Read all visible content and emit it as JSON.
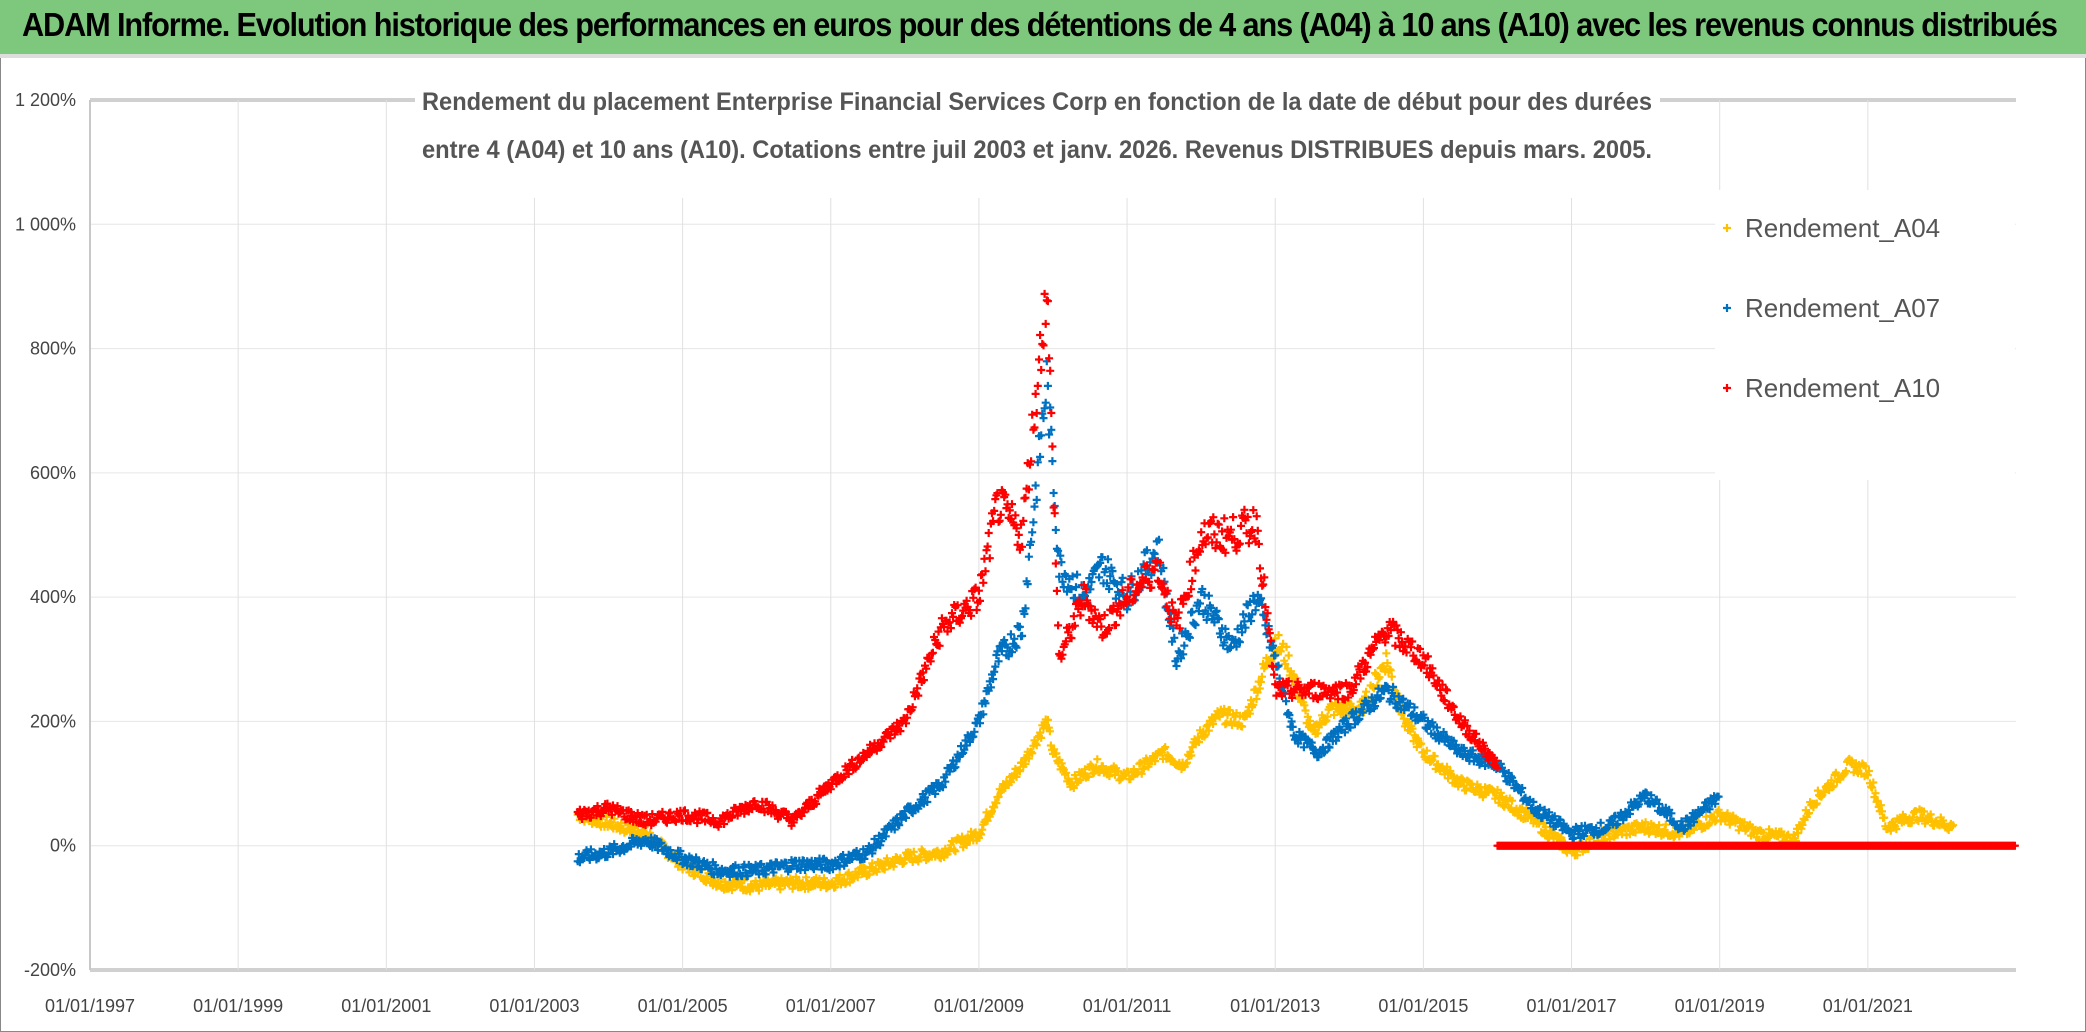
{
  "banner": {
    "title": "ADAM Informe. Evolution historique des performances en euros pour des détentions de 4 ans (A04) à 10 ans (A10) avec les revenus connus distribués"
  },
  "chart_data": {
    "type": "scatter",
    "title_lines": [
      "Rendement du placement Enterprise Financial Services Corp en fonction de la date de début pour des durées",
      "entre 4 (A04) et 10 ans (A10). Cotations entre juil 2003 et janv. 2026. Revenus DISTRIBUES depuis mars. 2005."
    ],
    "xlabel": "",
    "ylabel": "",
    "xlim": [
      "1997-01-01",
      "2023-01-01"
    ],
    "ylim": [
      -200,
      1200
    ],
    "y_ticks": [
      "-200%",
      "0%",
      "200%",
      "400%",
      "600%",
      "800%",
      "1 000%",
      "1 200%"
    ],
    "y_tick_values": [
      -200,
      0,
      200,
      400,
      600,
      800,
      1000,
      1200
    ],
    "x_ticks": [
      "01/01/1997",
      "01/01/1999",
      "01/01/2001",
      "01/01/2003",
      "01/01/2005",
      "01/01/2007",
      "01/01/2009",
      "01/01/2011",
      "01/01/2013",
      "01/01/2015",
      "01/01/2017",
      "01/01/2019",
      "01/01/2021"
    ],
    "grid": "vertical and horizontal",
    "legend_placement": "right",
    "marker": "+",
    "series": [
      {
        "name": "Rendement_A04",
        "color": "#ffc000",
        "points": [
          [
            "2003-08",
            50
          ],
          [
            "2004-07",
            20
          ],
          [
            "2005-01",
            -30
          ],
          [
            "2005-07",
            -60
          ],
          [
            "2006-01",
            -65
          ],
          [
            "2006-07",
            -60
          ],
          [
            "2007-01",
            -60
          ],
          [
            "2007-07",
            -40
          ],
          [
            "2008-01",
            -20
          ],
          [
            "2008-07",
            -10
          ],
          [
            "2009-01",
            20
          ],
          [
            "2009-04",
            80
          ],
          [
            "2009-08",
            130
          ],
          [
            "2009-12",
            200
          ],
          [
            "2010-01",
            150
          ],
          [
            "2010-04",
            100
          ],
          [
            "2010-08",
            130
          ],
          [
            "2011-01",
            110
          ],
          [
            "2011-07",
            150
          ],
          [
            "2011-10",
            130
          ],
          [
            "2012-01",
            180
          ],
          [
            "2012-04",
            210
          ],
          [
            "2012-08",
            200
          ],
          [
            "2013-01",
            330
          ],
          [
            "2013-03",
            300
          ],
          [
            "2013-07",
            180
          ],
          [
            "2013-10",
            220
          ],
          [
            "2014-03",
            220
          ],
          [
            "2014-07",
            300
          ],
          [
            "2014-10",
            200
          ],
          [
            "2015-01",
            150
          ],
          [
            "2015-07",
            100
          ],
          [
            "2016-01",
            80
          ],
          [
            "2016-07",
            40
          ],
          [
            "2017-01",
            -10
          ],
          [
            "2017-07",
            20
          ],
          [
            "2018-01",
            30
          ],
          [
            "2018-07",
            20
          ],
          [
            "2019-01",
            50
          ],
          [
            "2019-07",
            20
          ],
          [
            "2020-01",
            10
          ],
          [
            "2020-04",
            70
          ],
          [
            "2020-10",
            130
          ],
          [
            "2021-01",
            120
          ],
          [
            "2021-04",
            30
          ],
          [
            "2021-09",
            50
          ],
          [
            "2022-03",
            30
          ]
        ]
      },
      {
        "name": "Rendement_A07",
        "color": "#0070c0",
        "points": [
          [
            "2003-08",
            -20
          ],
          [
            "2004-01",
            -10
          ],
          [
            "2004-07",
            10
          ],
          [
            "2005-01",
            -20
          ],
          [
            "2005-07",
            -40
          ],
          [
            "2006-01",
            -40
          ],
          [
            "2006-07",
            -30
          ],
          [
            "2007-01",
            -30
          ],
          [
            "2007-07",
            -10
          ],
          [
            "2008-01",
            50
          ],
          [
            "2008-07",
            100
          ],
          [
            "2009-01",
            200
          ],
          [
            "2009-04",
            300
          ],
          [
            "2009-08",
            350
          ],
          [
            "2009-12",
            750
          ],
          [
            "2010-02",
            450
          ],
          [
            "2010-06",
            400
          ],
          [
            "2010-09",
            450
          ],
          [
            "2011-01",
            400
          ],
          [
            "2011-06",
            480
          ],
          [
            "2011-09",
            300
          ],
          [
            "2012-01",
            400
          ],
          [
            "2012-06",
            320
          ],
          [
            "2012-10",
            400
          ],
          [
            "2013-01",
            300
          ],
          [
            "2013-04",
            180
          ],
          [
            "2013-08",
            150
          ],
          [
            "2014-01",
            200
          ],
          [
            "2014-07",
            250
          ],
          [
            "2015-01",
            200
          ],
          [
            "2015-07",
            150
          ],
          [
            "2016-01",
            130
          ],
          [
            "2016-07",
            60
          ],
          [
            "2017-01",
            20
          ],
          [
            "2017-07",
            30
          ],
          [
            "2018-01",
            80
          ],
          [
            "2018-07",
            30
          ],
          [
            "2019-01",
            80
          ]
        ]
      },
      {
        "name": "Rendement_A10",
        "color": "#ff0000",
        "points": [
          [
            "2003-08",
            50
          ],
          [
            "2004-01",
            60
          ],
          [
            "2004-07",
            40
          ],
          [
            "2005-01",
            50
          ],
          [
            "2005-07",
            40
          ],
          [
            "2006-01",
            70
          ],
          [
            "2006-07",
            40
          ],
          [
            "2007-01",
            100
          ],
          [
            "2007-07",
            150
          ],
          [
            "2008-01",
            200
          ],
          [
            "2008-07",
            350
          ],
          [
            "2009-01",
            400
          ],
          [
            "2009-04",
            550
          ],
          [
            "2009-08",
            500
          ],
          [
            "2009-12",
            900
          ],
          [
            "2010-02",
            300
          ],
          [
            "2010-06",
            400
          ],
          [
            "2010-09",
            350
          ],
          [
            "2011-01",
            400
          ],
          [
            "2011-06",
            450
          ],
          [
            "2011-09",
            350
          ],
          [
            "2012-01",
            500
          ],
          [
            "2012-06",
            500
          ],
          [
            "2012-10",
            520
          ],
          [
            "2013-01",
            250
          ],
          [
            "2013-07",
            250
          ],
          [
            "2014-01",
            250
          ],
          [
            "2014-07",
            350
          ],
          [
            "2015-01",
            300
          ],
          [
            "2015-07",
            200
          ],
          [
            "2016-01",
            130
          ],
          [
            "2016-01",
            0
          ],
          [
            "2023-01",
            0
          ]
        ]
      }
    ]
  }
}
